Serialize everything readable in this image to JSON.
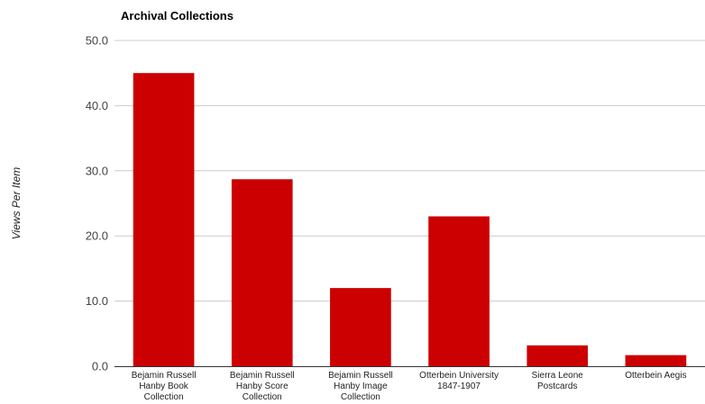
{
  "chart_data": {
    "type": "bar",
    "title": "Archival Collections",
    "xlabel": "",
    "ylabel": "Views Per Item",
    "ylim": [
      0,
      50
    ],
    "y_ticks": [
      "0.0",
      "10.0",
      "20.0",
      "30.0",
      "40.0",
      "50.0"
    ],
    "grid": true,
    "legend": "none",
    "bar_color": "#cc0000",
    "categories": [
      [
        "Bejamin Russell",
        "Hanby Book",
        "Collection"
      ],
      [
        "Bejamin Russell",
        "Hanby Score",
        "Collection"
      ],
      [
        "Bejamin Russell",
        "Hanby Image",
        "Collection"
      ],
      [
        "Otterbein University",
        "1847-1907"
      ],
      [
        "Sierra Leone",
        "Postcards"
      ],
      [
        "Otterbein Aegis"
      ]
    ],
    "values": [
      45.0,
      28.7,
      12.0,
      23.0,
      3.2,
      1.7
    ]
  }
}
